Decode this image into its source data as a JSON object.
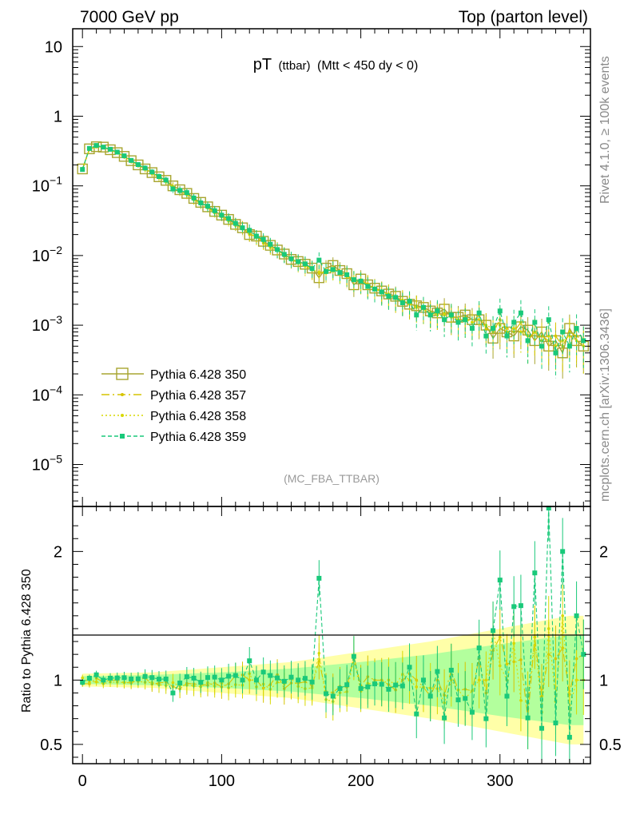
{
  "header": {
    "left": "7000 GeV pp",
    "right": "Top (parton level)"
  },
  "side_labels": {
    "rivet": "Rivet 4.1.0, ≥ 100k events",
    "mcplots": "mcplots.cern.ch [arXiv:1306.3436]"
  },
  "chart_data": {
    "type": "line",
    "title": "pT",
    "title_sub": "(ttbar)",
    "title_cut": "(Mtt < 450 dy < 0)",
    "analysis": "(MC_FBA_TTBAR)",
    "xlabel": "",
    "ylabel_top": "",
    "ylabel_ratio": "Ratio to Pythia 6.428 350",
    "xlim": [
      -7,
      365
    ],
    "ylim_top": [
      2.5e-06,
      18
    ],
    "ylim_ratio": [
      0.35,
      2.35
    ],
    "yscale_top": "log",
    "xticks": [
      "0",
      "100",
      "200",
      "300"
    ],
    "yticks_top": [
      {
        "base": "10",
        "exp": "",
        "value": 10
      },
      {
        "base": "1",
        "exp": "",
        "value": 1
      },
      {
        "base": "10",
        "exp": "−1",
        "value": 0.1
      },
      {
        "base": "10",
        "exp": "−2",
        "value": 0.01
      },
      {
        "base": "10",
        "exp": "−3",
        "value": 0.001
      },
      {
        "base": "10",
        "exp": "−4",
        "value": 0.0001
      },
      {
        "base": "10",
        "exp": "−5",
        "value": 1e-05
      }
    ],
    "yticks_ratio": [
      "2",
      "1",
      "0.5"
    ],
    "legend": [
      {
        "name": "Pythia 6.428 350",
        "color": "#a8a530",
        "style": "square-open"
      },
      {
        "name": "Pythia 6.428 357",
        "color": "#d6c400",
        "style": "dashdot"
      },
      {
        "name": "Pythia 6.428 358",
        "color": "#d7d800",
        "style": "dotted"
      },
      {
        "name": "Pythia 6.428 359",
        "color": "#19c97a",
        "style": "dashed-square"
      }
    ],
    "x": [
      0,
      5,
      10,
      15,
      20,
      25,
      30,
      35,
      40,
      45,
      50,
      55,
      60,
      65,
      70,
      75,
      80,
      85,
      90,
      95,
      100,
      105,
      110,
      115,
      120,
      125,
      130,
      135,
      140,
      145,
      150,
      155,
      160,
      165,
      170,
      175,
      180,
      185,
      190,
      195,
      200,
      205,
      210,
      215,
      220,
      225,
      230,
      235,
      240,
      245,
      250,
      255,
      260,
      265,
      270,
      275,
      280,
      285,
      290,
      295,
      300,
      305,
      310,
      315,
      320,
      325,
      330,
      335,
      340,
      345,
      350,
      355,
      360
    ],
    "series": [
      {
        "name": "Pythia 6.428 350",
        "values": [
          0.175,
          0.34,
          0.365,
          0.36,
          0.33,
          0.3,
          0.265,
          0.23,
          0.2,
          0.175,
          0.155,
          0.135,
          0.12,
          0.1,
          0.088,
          0.078,
          0.066,
          0.058,
          0.05,
          0.043,
          0.038,
          0.033,
          0.028,
          0.025,
          0.02,
          0.019,
          0.016,
          0.014,
          0.012,
          0.0105,
          0.0088,
          0.0082,
          0.0075,
          0.0066,
          0.0048,
          0.0066,
          0.0072,
          0.0061,
          0.0055,
          0.0038,
          0.0046,
          0.0038,
          0.0034,
          0.0031,
          0.0028,
          0.0026,
          0.0022,
          0.002,
          0.0019,
          0.0018,
          0.0016,
          0.0015,
          0.0017,
          0.0013,
          0.0013,
          0.0014,
          0.0012,
          0.0012,
          0.001,
          0.00065,
          0.0009,
          0.0008,
          0.0007,
          0.00095,
          0.00085,
          0.0006,
          0.0008,
          0.0005,
          0.0006,
          0.0004,
          0.0009,
          0.0006,
          0.0005
        ]
      },
      {
        "name": "Pythia 6.428 357",
        "values": [
          0.17,
          0.33,
          0.37,
          0.355,
          0.33,
          0.3,
          0.26,
          0.225,
          0.2,
          0.178,
          0.15,
          0.132,
          0.118,
          0.095,
          0.082,
          0.076,
          0.064,
          0.056,
          0.048,
          0.042,
          0.036,
          0.032,
          0.029,
          0.026,
          0.02,
          0.019,
          0.015,
          0.0135,
          0.0125,
          0.0098,
          0.0086,
          0.008,
          0.0074,
          0.0063,
          0.0055,
          0.006,
          0.0065,
          0.0058,
          0.0052,
          0.0045,
          0.0044,
          0.0039,
          0.0034,
          0.0031,
          0.0027,
          0.0024,
          0.0022,
          0.0021,
          0.0019,
          0.0017,
          0.0014,
          0.0015,
          0.0015,
          0.0014,
          0.0012,
          0.0013,
          0.0011,
          0.0014,
          0.0009,
          0.0008,
          0.0012,
          0.0009,
          0.0008,
          0.0011,
          0.0006,
          0.0008,
          0.0007,
          0.0006,
          0.0007,
          0.0005,
          0.0008,
          0.0007,
          0.0006
        ]
      },
      {
        "name": "Pythia 6.428 358",
        "values": [
          0.178,
          0.335,
          0.36,
          0.35,
          0.325,
          0.295,
          0.26,
          0.228,
          0.198,
          0.172,
          0.152,
          0.13,
          0.115,
          0.098,
          0.084,
          0.075,
          0.063,
          0.055,
          0.049,
          0.041,
          0.037,
          0.031,
          0.027,
          0.024,
          0.021,
          0.018,
          0.0155,
          0.013,
          0.0118,
          0.0102,
          0.0089,
          0.0078,
          0.007,
          0.0062,
          0.0058,
          0.0056,
          0.006,
          0.0055,
          0.005,
          0.0044,
          0.0042,
          0.0037,
          0.0033,
          0.003,
          0.0028,
          0.0025,
          0.0023,
          0.002,
          0.0018,
          0.0017,
          0.0015,
          0.0014,
          0.0014,
          0.0013,
          0.0012,
          0.0012,
          0.0011,
          0.0012,
          0.001,
          0.0009,
          0.001,
          0.0008,
          0.0009,
          0.0008,
          0.0007,
          0.0008,
          0.0006,
          0.0007,
          0.0005,
          0.0006,
          0.0007,
          0.0006,
          0.0005
        ]
      },
      {
        "name": "Pythia 6.428 359",
        "values": [
          0.172,
          0.345,
          0.38,
          0.36,
          0.335,
          0.305,
          0.27,
          0.232,
          0.202,
          0.18,
          0.158,
          0.136,
          0.121,
          0.09,
          0.086,
          0.08,
          0.067,
          0.057,
          0.051,
          0.044,
          0.038,
          0.034,
          0.029,
          0.025,
          0.023,
          0.019,
          0.017,
          0.0145,
          0.0122,
          0.0104,
          0.009,
          0.0082,
          0.0076,
          0.0065,
          0.0086,
          0.0059,
          0.0063,
          0.0057,
          0.0053,
          0.0045,
          0.0043,
          0.0036,
          0.0033,
          0.003,
          0.0026,
          0.0025,
          0.0021,
          0.0022,
          0.0014,
          0.0018,
          0.0014,
          0.0016,
          0.0012,
          0.0014,
          0.0011,
          0.0012,
          0.0009,
          0.0015,
          0.0007,
          0.0009,
          0.0016,
          0.0007,
          0.0011,
          0.0015,
          0.0006,
          0.0011,
          0.0005,
          0.0012,
          0.0004,
          0.0008,
          0.0005,
          0.0009,
          0.0006
        ]
      }
    ],
    "ratio_band_half_width": {
      "x": [
        0,
        50,
        100,
        150,
        200,
        250,
        300,
        350,
        360
      ],
      "yellow": [
        0.05,
        0.06,
        0.1,
        0.14,
        0.22,
        0.3,
        0.4,
        0.5,
        0.5
      ],
      "green": [
        0.03,
        0.04,
        0.06,
        0.09,
        0.14,
        0.2,
        0.28,
        0.35,
        0.35
      ]
    }
  }
}
